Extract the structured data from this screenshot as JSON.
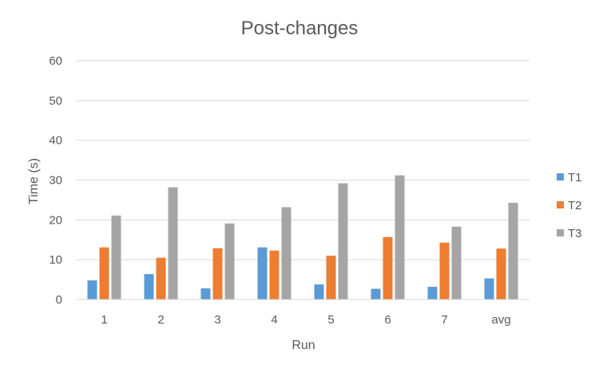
{
  "chart_data": {
    "type": "bar",
    "title": "Post-changes",
    "xlabel": "Run",
    "ylabel": "Time (s)",
    "ylim": [
      0,
      60
    ],
    "yticks": [
      0,
      10,
      20,
      30,
      40,
      50,
      60
    ],
    "grid": true,
    "legend_position": "right",
    "categories": [
      "1",
      "2",
      "3",
      "4",
      "5",
      "6",
      "7",
      "avg"
    ],
    "series": [
      {
        "name": "T1",
        "color": "#5b9bd5",
        "values": [
          4.8,
          6.4,
          2.8,
          13.1,
          3.8,
          2.7,
          3.2,
          5.3
        ]
      },
      {
        "name": "T2",
        "color": "#ed7d31",
        "values": [
          13.1,
          10.5,
          12.9,
          12.3,
          11.0,
          15.7,
          14.3,
          12.8
        ]
      },
      {
        "name": "T3",
        "color": "#a5a5a5",
        "values": [
          21.1,
          28.2,
          19.1,
          23.2,
          29.2,
          31.2,
          18.3,
          24.3
        ]
      }
    ]
  }
}
